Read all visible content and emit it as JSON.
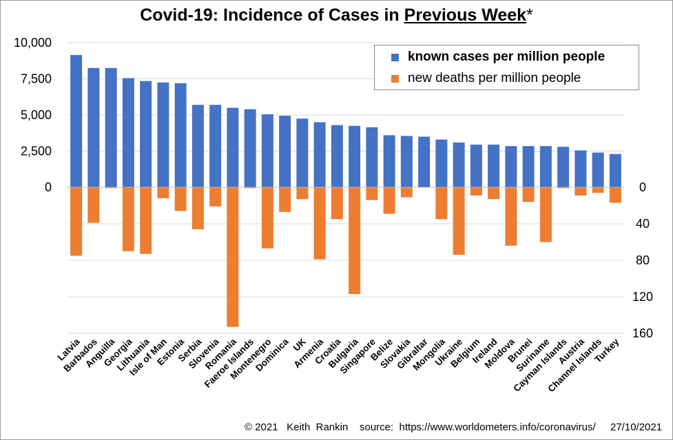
{
  "title": {
    "prefix": "Covid-19: Incidence of Cases in ",
    "underlined": "Previous Week",
    "suffix": "*"
  },
  "legend": {
    "cases": "known cases per million people",
    "deaths": "new deaths per million people"
  },
  "colors": {
    "cases": "#4472C4",
    "deaths": "#ED7D31",
    "grid": "#d9d9d9"
  },
  "footer": {
    "copyright": "© 2021   Keith  Rankin",
    "source": "source:  https://www.worldometers.info/coronavirus/",
    "date": "27/10/2021"
  },
  "chart_data": {
    "type": "bar",
    "title": "Covid-19: Incidence of Cases in Previous Week*",
    "categories": [
      "Latvia",
      "Barbados",
      "Anguilla",
      "Georgia",
      "Lithuania",
      "Isle of Man",
      "Estonia",
      "Serbia",
      "Slovenia",
      "Romania",
      "Faeroe Islands",
      "Montenegro",
      "Dominica",
      "UK",
      "Armenia",
      "Croatia",
      "Bulgaria",
      "Singapore",
      "Belize",
      "Slovakia",
      "Gibraltar",
      "Mongolia",
      "Ukraine",
      "Belgium",
      "Ireland",
      "Moldova",
      "Brunei",
      "Suriname",
      "Cayman Islands",
      "Austria",
      "Channel Islands",
      "Turkey"
    ],
    "series": [
      {
        "name": "known cases per million people",
        "axis": "left",
        "values": [
          9150,
          8250,
          8250,
          7550,
          7350,
          7250,
          7200,
          5700,
          5700,
          5500,
          5400,
          5050,
          4950,
          4750,
          4500,
          4300,
          4250,
          4150,
          3600,
          3550,
          3500,
          3300,
          3100,
          2950,
          2950,
          2850,
          2850,
          2850,
          2800,
          2550,
          2400,
          2300
        ]
      },
      {
        "name": "new deaths per million people",
        "axis": "right",
        "values": [
          75,
          39,
          1,
          70,
          73,
          12,
          26,
          46,
          21,
          153,
          1,
          67,
          27,
          13,
          79,
          35,
          117,
          14,
          29,
          11,
          0,
          35,
          74,
          9,
          13,
          64,
          16,
          60,
          1,
          9,
          6,
          17
        ]
      }
    ],
    "left_axis": {
      "ticks": [
        "10,000",
        "7,500",
        "5,000",
        "2,500",
        "0"
      ],
      "range": [
        0,
        10000
      ]
    },
    "right_axis": {
      "ticks": [
        "0",
        "40",
        "80",
        "120",
        "160"
      ],
      "range": [
        0,
        160
      ],
      "direction": "downward"
    },
    "grid": true,
    "legend_position": "top-right"
  }
}
